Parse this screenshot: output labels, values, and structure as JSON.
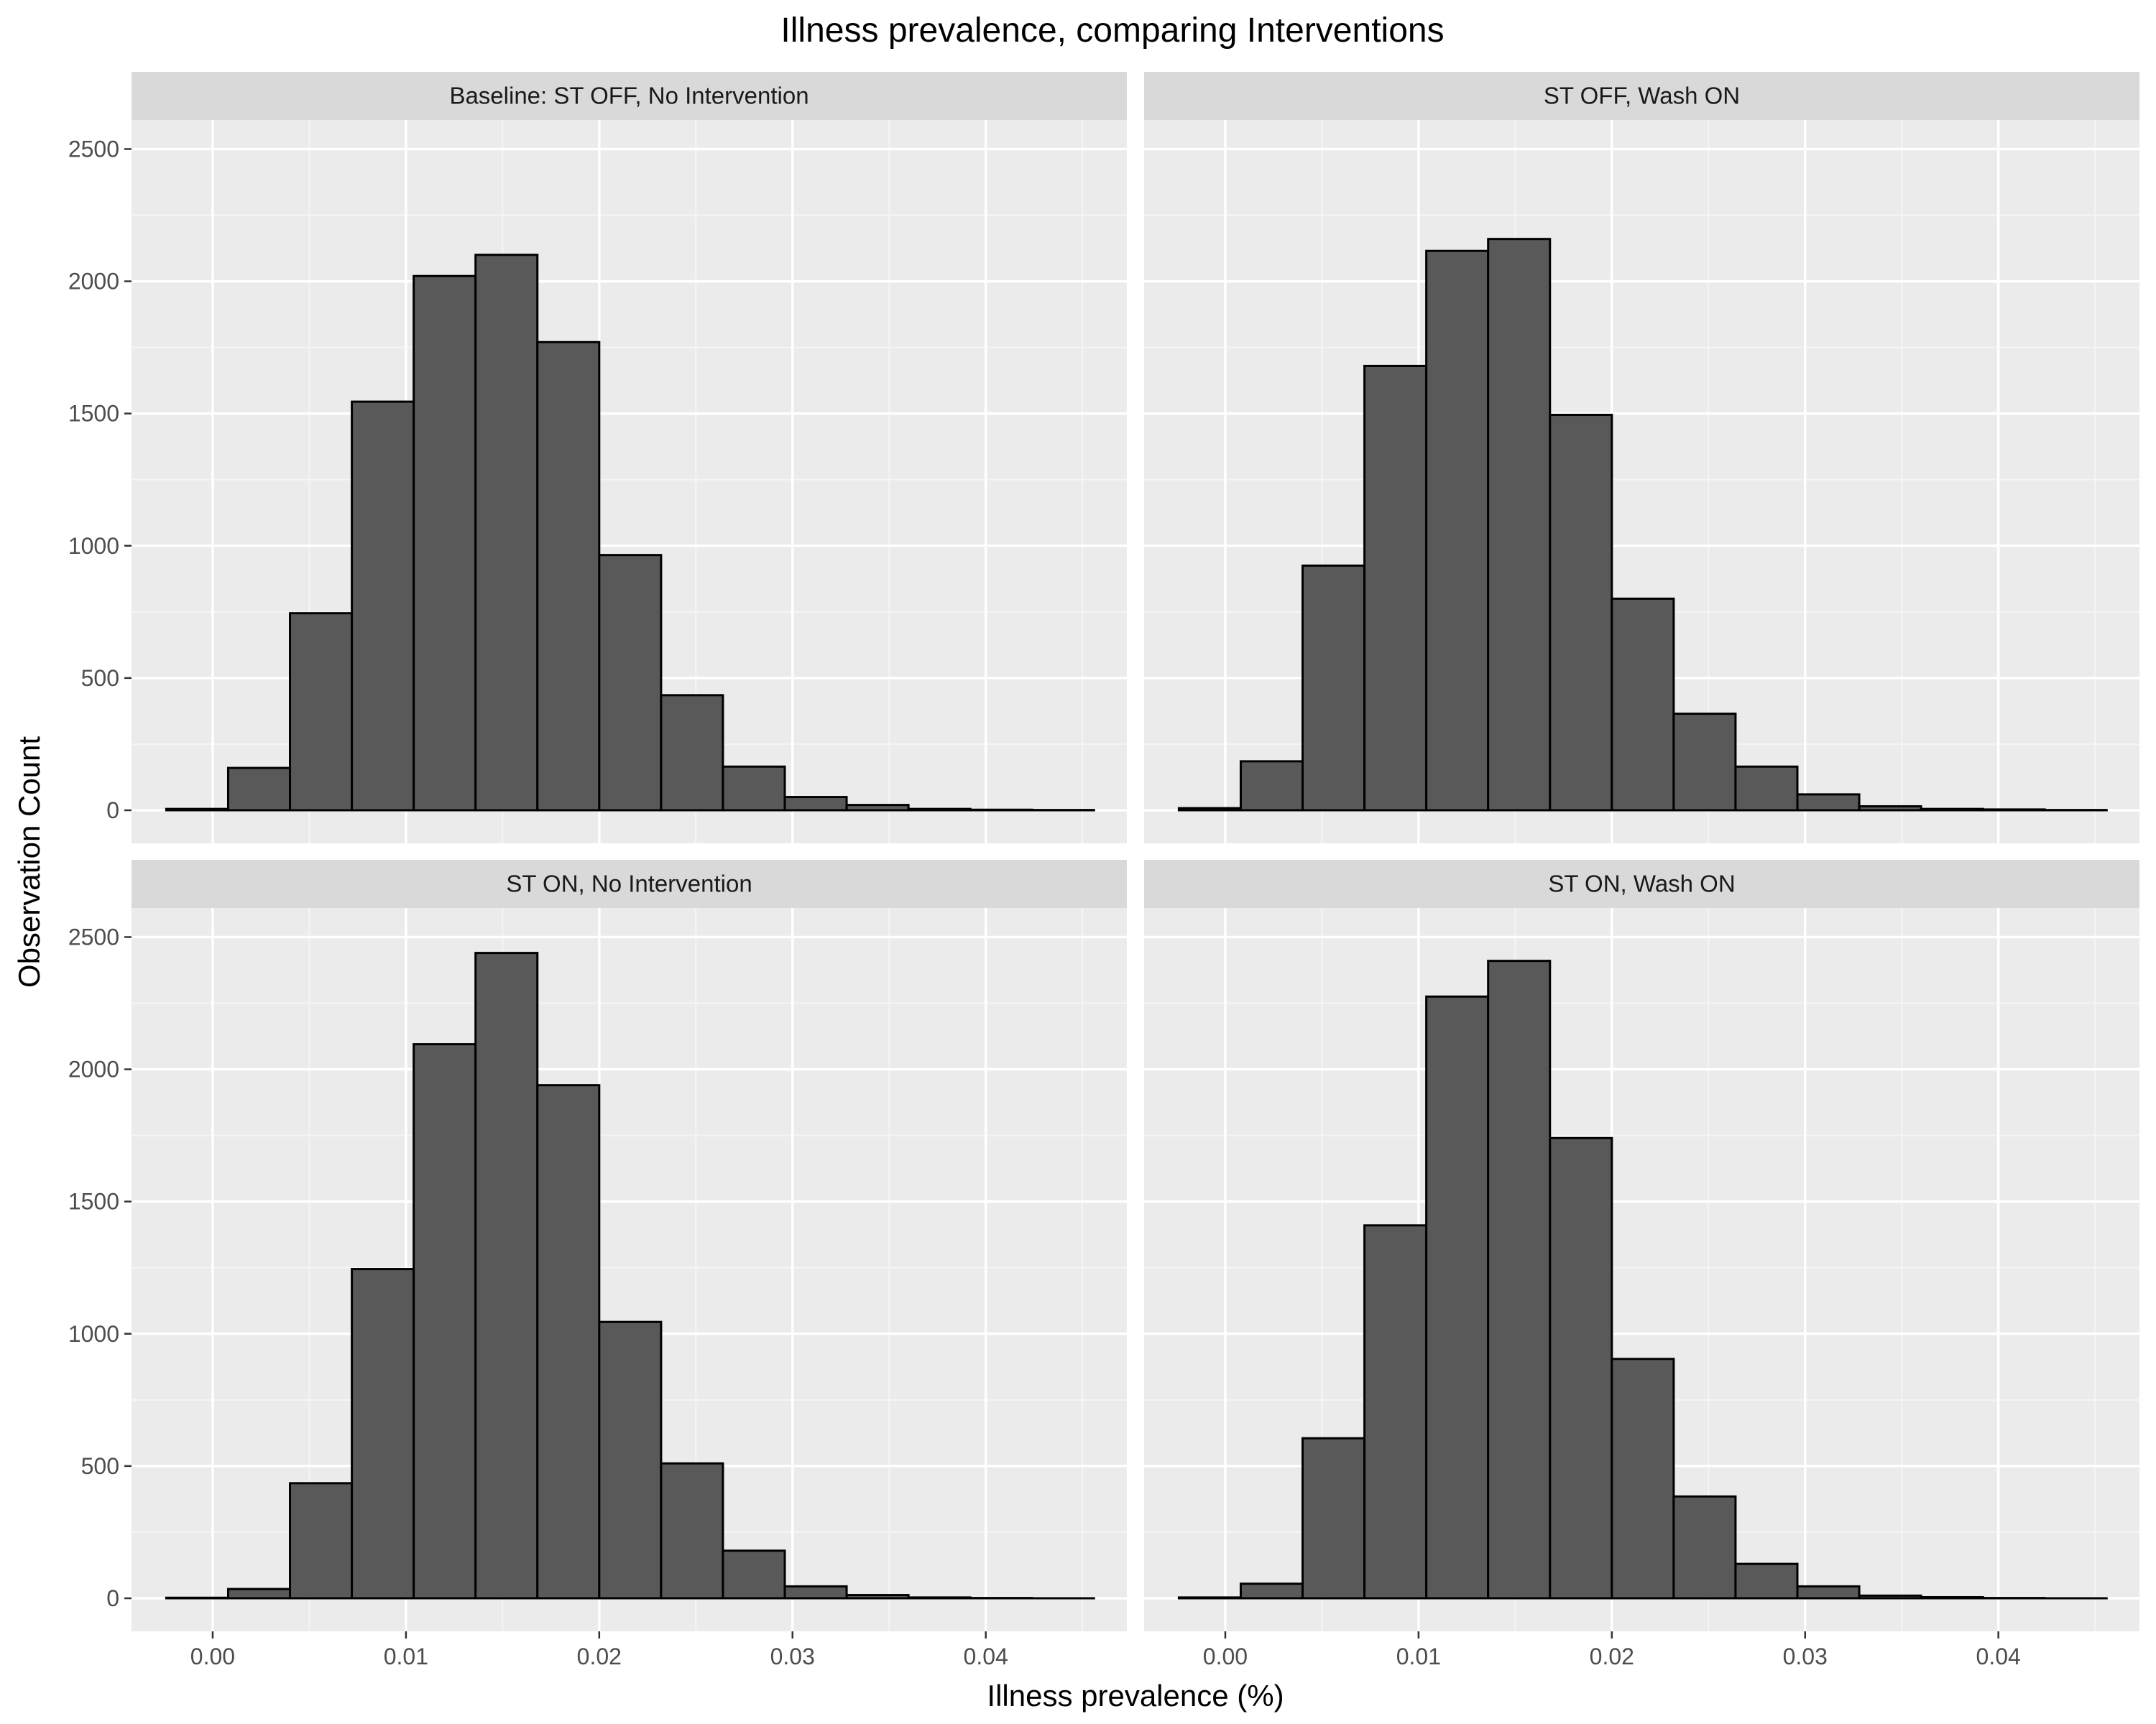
{
  "chart_data": {
    "type": "bar",
    "title": "Illness prevalence, comparing Interventions",
    "xlabel": "Illness prevalence (%)",
    "ylabel": "Observation Count",
    "xlim": [
      -0.0042,
      0.0473
    ],
    "ylim": [
      -125,
      2610
    ],
    "x_ticks": [
      "0.00",
      "0.01",
      "0.02",
      "0.03",
      "0.04"
    ],
    "y_ticks": [
      "0",
      "500",
      "1000",
      "1500",
      "2000",
      "2500"
    ],
    "bin_start": -0.0024,
    "bin_width": 0.0032,
    "grid": true,
    "panels": [
      {
        "name": "Baseline: ST OFF, No Intervention",
        "values": [
          5,
          160,
          745,
          1545,
          2020,
          2100,
          1770,
          965,
          435,
          165,
          50,
          20,
          5,
          2,
          1
        ]
      },
      {
        "name": "ST OFF, Wash ON",
        "values": [
          8,
          185,
          925,
          1680,
          2115,
          2160,
          1495,
          800,
          365,
          165,
          60,
          15,
          5,
          3,
          1
        ]
      },
      {
        "name": "ST ON, No Intervention",
        "values": [
          2,
          35,
          435,
          1245,
          2095,
          2440,
          1940,
          1045,
          510,
          180,
          45,
          12,
          3,
          1,
          0
        ]
      },
      {
        "name": "ST ON, Wash ON",
        "values": [
          3,
          55,
          605,
          1410,
          2275,
          2410,
          1740,
          905,
          385,
          130,
          45,
          10,
          4,
          1,
          0
        ]
      }
    ]
  }
}
